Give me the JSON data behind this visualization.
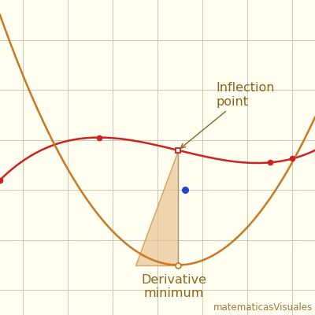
{
  "background_color": "#fffef0",
  "grid_color": "#c8c8b0",
  "xlim": [
    -3.5,
    3.5
  ],
  "ylim": [
    -2.5,
    3.8
  ],
  "poly_color": "#cc2222",
  "deriv_color": "#cc7722",
  "poly_coeffs": [
    0.15,
    -0.1,
    -1.4,
    0.0,
    1.2
  ],
  "label_inflection": "Inflection\npoint",
  "label_deriv_min": "Derivative\nminimum",
  "label_color": "#8b6420",
  "label_fontsize": 11.5,
  "triangle_color": "#e8c090",
  "triangle_alpha": 0.65,
  "red_points_x": [
    -3.5,
    -1.3,
    2.5
  ],
  "red_points_y": [
    0.2,
    1.05,
    0.55
  ],
  "watermark": "matematicasVisuales",
  "watermark_color": "#8b6420",
  "watermark_fontsize": 8.5
}
